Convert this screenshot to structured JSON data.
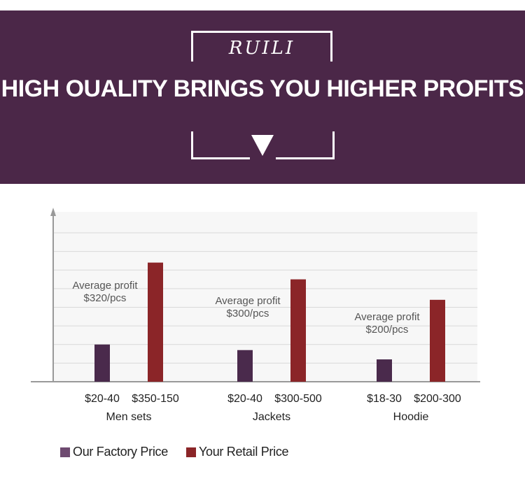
{
  "banner": {
    "brand": "RUILI",
    "headline": "HIGH OUALITY BRINGS YOU HIGHER PROFITS"
  },
  "colors": {
    "banner_bg": "#4b2748",
    "factory": "#4a2a4c",
    "retail": "#8b2528"
  },
  "chart_data": {
    "type": "bar",
    "title": "",
    "categories": [
      "Men sets",
      "Jackets",
      "Hoodie"
    ],
    "series": [
      {
        "name": "Our Factory Price",
        "values": [
          2,
          1.7,
          1.2
        ],
        "labels": [
          "$20-40",
          "$20-40",
          "$18-30"
        ]
      },
      {
        "name": "Your Retail Price",
        "values": [
          6.4,
          5.5,
          4.4
        ],
        "labels": [
          "$350-150",
          "$300-500",
          "$200-300"
        ]
      }
    ],
    "annotations": [
      {
        "category": "Men sets",
        "line1": "Average profit",
        "line2": "$320/pcs"
      },
      {
        "category": "Jackets",
        "line1": "Average profit",
        "line2": "$300/pcs"
      },
      {
        "category": "Hoodie",
        "line1": "Average profit",
        "line2": "$200/pcs"
      }
    ],
    "ylim": [
      0,
      8
    ],
    "grid": true,
    "legend": "bottom-left"
  }
}
